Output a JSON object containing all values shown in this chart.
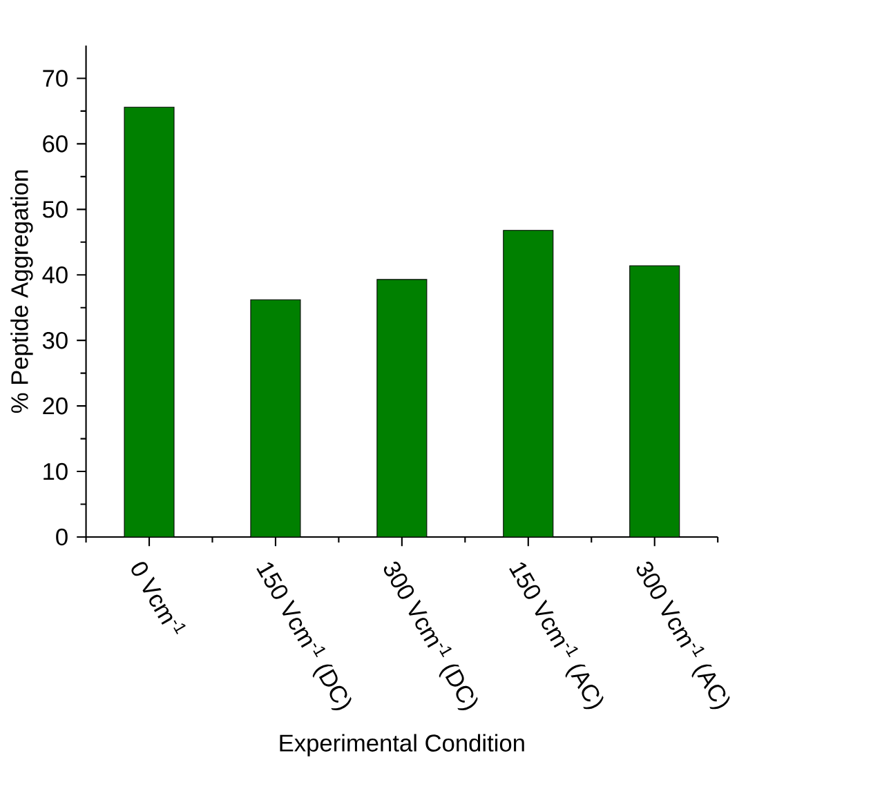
{
  "chart_data": {
    "type": "bar",
    "xlabel": "Experimental Condition",
    "ylabel": "%  Peptide Aggregation",
    "categories": [
      "0 Vcm$^{-1}$",
      "150 Vcm$^{-1}$ (DC)",
      "300 Vcm$^{-1}$ (DC)",
      "150 Vcm$^{-1}$ (AC)",
      "300 Vcm$^{-1}$ (AC)"
    ],
    "values": [
      65.6,
      36.2,
      39.3,
      46.8,
      41.4
    ],
    "color": "#008000",
    "ylim": [
      0,
      75
    ],
    "yticks": [
      0,
      10,
      20,
      30,
      40,
      50,
      60,
      70
    ],
    "grid": false
  }
}
